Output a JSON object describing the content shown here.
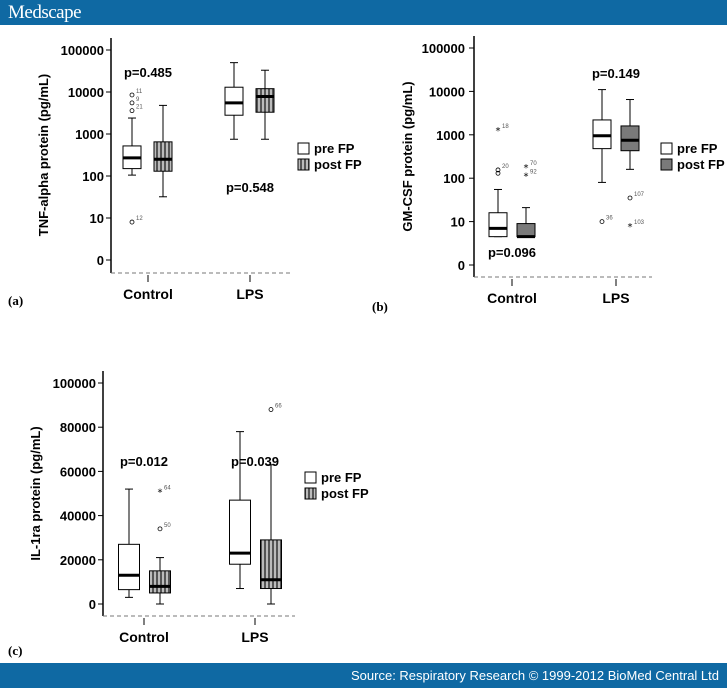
{
  "header": {
    "logo": "Medscape"
  },
  "footer": {
    "source": "Source: Respiratory Research © 1999-2012 BioMed Central Ltd"
  },
  "legend": {
    "pre": "pre FP",
    "post": "post FP"
  },
  "colors": {
    "header": "#0f69a3",
    "post_fill_striped": "#8a8a8a",
    "post_fill_solid": "#7a7a7a"
  },
  "chart_data": [
    {
      "type": "boxplot",
      "panel": "(a)",
      "scale": "log",
      "ylabel": "TNF-alpha protein (pg/mL)",
      "yticks": [
        "0",
        "10",
        "100",
        "1000",
        "10000",
        "100000"
      ],
      "categories": [
        "Control",
        "LPS"
      ],
      "post_style": "striped",
      "pvalues": [
        {
          "category": "Control",
          "text": "p=0.485",
          "position": "above"
        },
        {
          "category": "LPS",
          "text": "p=0.548",
          "position": "below"
        }
      ],
      "series": [
        {
          "name": "pre FP",
          "boxes": [
            {
              "min": 105,
              "q1": 150,
              "median": 270,
              "q3": 520,
              "max": 2400,
              "outliers": [
                {
                  "v": 8,
                  "label": "12",
                  "mark": "o"
                },
                {
                  "v": 3600,
                  "label": "21",
                  "mark": "o"
                },
                {
                  "v": 5500,
                  "label": "9",
                  "mark": "o"
                },
                {
                  "v": 8500,
                  "label": "11",
                  "mark": "o"
                }
              ]
            },
            {
              "min": 750,
              "q1": 2800,
              "median": 5500,
              "q3": 13000,
              "max": 50000,
              "outliers": []
            }
          ]
        },
        {
          "name": "post FP",
          "boxes": [
            {
              "min": 32,
              "q1": 130,
              "median": 250,
              "q3": 650,
              "max": 4800,
              "outliers": []
            },
            {
              "min": 750,
              "q1": 3300,
              "median": 7800,
              "q3": 12000,
              "max": 33000,
              "outliers": []
            }
          ]
        }
      ]
    },
    {
      "type": "boxplot",
      "panel": "(b)",
      "scale": "log",
      "ylabel": "GM-CSF protein (pg/mL)",
      "yticks": [
        "0",
        "10",
        "100",
        "1000",
        "10000",
        "100000"
      ],
      "categories": [
        "Control",
        "LPS"
      ],
      "post_style": "solid",
      "pvalues": [
        {
          "category": "Control",
          "text": "p=0.096",
          "position": "below"
        },
        {
          "category": "LPS",
          "text": "p=0.149",
          "position": "above"
        }
      ],
      "series": [
        {
          "name": "pre FP",
          "boxes": [
            {
              "min": 4.5,
              "q1": 4.5,
              "median": 7,
              "q3": 16,
              "max": 55,
              "outliers": [
                {
                  "v": 1300,
                  "label": "18",
                  "mark": "*"
                },
                {
                  "v": 130,
                  "label": "",
                  "mark": "o"
                },
                {
                  "v": 155,
                  "label": "20",
                  "mark": "o"
                }
              ]
            },
            {
              "min": 80,
              "q1": 480,
              "median": 950,
              "q3": 2200,
              "max": 11000,
              "outliers": [
                {
                  "v": 10,
                  "label": "36",
                  "mark": "o"
                }
              ]
            }
          ]
        },
        {
          "name": "post FP",
          "boxes": [
            {
              "min": 4.5,
              "q1": 4.5,
              "median": 4.5,
              "q3": 9,
              "max": 21,
              "outliers": [
                {
                  "v": 180,
                  "label": "70",
                  "mark": "*"
                },
                {
                  "v": 115,
                  "label": "92",
                  "mark": "*"
                }
              ]
            },
            {
              "min": 160,
              "q1": 430,
              "median": 750,
              "q3": 1600,
              "max": 6500,
              "outliers": [
                {
                  "v": 35,
                  "label": "107",
                  "mark": "o"
                },
                {
                  "v": 8,
                  "label": "103",
                  "mark": "*"
                }
              ]
            }
          ]
        }
      ]
    },
    {
      "type": "boxplot",
      "panel": "(c)",
      "scale": "linear",
      "ylabel": "IL-1ra protein (pg/mL)",
      "yticks": [
        "0",
        "20000",
        "40000",
        "60000",
        "80000",
        "100000"
      ],
      "ylim": [
        0,
        100000
      ],
      "categories": [
        "Control",
        "LPS"
      ],
      "post_style": "striped",
      "pvalues": [
        {
          "category": "Control",
          "text": "p=0.012",
          "position": "above"
        },
        {
          "category": "LPS",
          "text": "p=0.039",
          "position": "above"
        }
      ],
      "series": [
        {
          "name": "pre FP",
          "boxes": [
            {
              "min": 3000,
              "q1": 6500,
              "median": 13000,
              "q3": 27000,
              "max": 52000,
              "outliers": []
            },
            {
              "min": 7000,
              "q1": 18000,
              "median": 23000,
              "q3": 47000,
              "max": 78000,
              "outliers": []
            }
          ]
        },
        {
          "name": "post FP",
          "boxes": [
            {
              "min": 0,
              "q1": 5000,
              "median": 8000,
              "q3": 15000,
              "max": 21000,
              "outliers": [
                {
                  "v": 51000,
                  "label": "64",
                  "mark": "*"
                },
                {
                  "v": 34000,
                  "label": "50",
                  "mark": "o"
                }
              ]
            },
            {
              "min": 0,
              "q1": 7000,
              "median": 11000,
              "q3": 29000,
              "max": 63000,
              "outliers": [
                {
                  "v": 88000,
                  "label": "66",
                  "mark": "o"
                }
              ]
            }
          ]
        }
      ]
    }
  ]
}
